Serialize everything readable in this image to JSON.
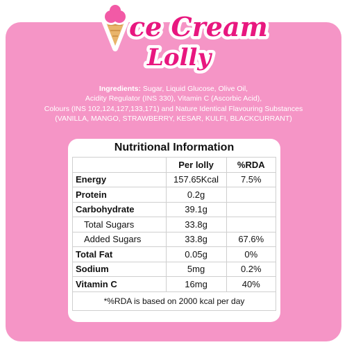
{
  "brand": {
    "line1": "ce Cream",
    "line2": "Lolly",
    "colors": {
      "text": "#e8177f",
      "outline": "#ffffff",
      "cone": "#e9b46a",
      "scoop": "#f25aa6"
    },
    "logo_icon": "ice-cream-cone-icon"
  },
  "ingredients": {
    "label": "Ingredients:",
    "line1": "Sugar, Liquid Glucose, Olive Oil,",
    "line2": "Acidity Regulator (INS 330), Vitamin C (Ascorbic Acid),",
    "line3": "Colours (INS 102,124,127,133,171) and  Nature Identical Flavouring Substances",
    "line4": "(VANILLA, MANGO, STRAWBERRY, KESAR, KULFI, BLACKCURRANT)"
  },
  "nutrition": {
    "title": "Nutritional Information",
    "headers": [
      "",
      "Per lolly",
      "%RDA"
    ],
    "rows": [
      {
        "name": "Energy",
        "value": "157.65Kcal",
        "rda": "7.5%",
        "sub": false
      },
      {
        "name": "Protein",
        "value": "0.2g",
        "rda": "",
        "sub": false
      },
      {
        "name": "Carbohydrate",
        "value": "39.1g",
        "rda": "",
        "sub": false
      },
      {
        "name": "Total Sugars",
        "value": "33.8g",
        "rda": "",
        "sub": true
      },
      {
        "name": "Added Sugars",
        "value": "33.8g",
        "rda": "67.6%",
        "sub": true
      },
      {
        "name": "Total Fat",
        "value": "0.05g",
        "rda": "0%",
        "sub": false
      },
      {
        "name": "Sodium",
        "value": "5mg",
        "rda": "0.2%",
        "sub": false
      },
      {
        "name": "Vitamin C",
        "value": "16mg",
        "rda": "40%",
        "sub": false
      }
    ],
    "footnote": "*%RDA is based on 2000 kcal per day"
  }
}
